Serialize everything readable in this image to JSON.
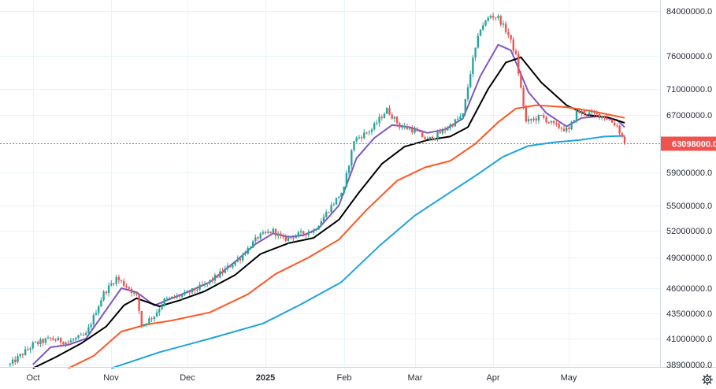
{
  "colors": {
    "background": "#ffffff",
    "grid": "#e9f3f8",
    "axis_line": "#cfd6dc",
    "up_candle": "#26a69a",
    "down_candle": "#ef5350",
    "ma_purple": "#7e57c2",
    "ma_black": "#000000",
    "ma_orange": "#ff5722",
    "ma_blue": "#1fa2e0",
    "last_price": "#ef5350"
  },
  "chart_data": {
    "type": "candlestick",
    "title": "",
    "xlabel": "",
    "ylabel": "",
    "grid": true,
    "ylim": [
      38500000,
      86000000
    ],
    "y_ticks": [
      {
        "value": 84000000,
        "label": "84000000.0"
      },
      {
        "value": 76000000,
        "label": "76000000.0"
      },
      {
        "value": 71000000,
        "label": "71000000.0"
      },
      {
        "value": 67000000,
        "label": "67000000.0"
      },
      {
        "value": 59000000,
        "label": "59000000.0"
      },
      {
        "value": 55000000,
        "label": "55000000.0"
      },
      {
        "value": 52000000,
        "label": "52000000.0"
      },
      {
        "value": 49000000,
        "label": "49000000.0"
      },
      {
        "value": 46000000,
        "label": "46000000.0"
      },
      {
        "value": 43500000,
        "label": "43500000.0"
      },
      {
        "value": 41000000,
        "label": "41000000.0"
      },
      {
        "value": 38900000,
        "label": "38900000.0"
      }
    ],
    "x_ticks": [
      {
        "date": "2024-10-01",
        "label": "Oct",
        "bold": false
      },
      {
        "date": "2024-11-01",
        "label": "Nov",
        "bold": false
      },
      {
        "date": "2024-12-01",
        "label": "Dec",
        "bold": false
      },
      {
        "date": "2025-01-01",
        "label": "2025",
        "bold": true
      },
      {
        "date": "2025-02-01",
        "label": "Feb",
        "bold": false
      },
      {
        "date": "2025-03-01",
        "label": "Mar",
        "bold": false
      },
      {
        "date": "2025-04-01",
        "label": "Apr",
        "bold": false
      },
      {
        "date": "2025-05-01",
        "label": "May",
        "bold": false
      }
    ],
    "x_range": [
      "2024-09-18",
      "2025-06-06"
    ],
    "last_price": {
      "value": 63098000,
      "label": "63098000.0"
    },
    "ohlc_path": [
      [
        "2024-09-22",
        38900000
      ],
      [
        "2024-10-01",
        40500000
      ],
      [
        "2024-10-08",
        41000000
      ],
      [
        "2024-10-15",
        40700000
      ],
      [
        "2024-10-22",
        41400000
      ],
      [
        "2024-10-29",
        45500000
      ],
      [
        "2024-11-03",
        47000000
      ],
      [
        "2024-11-08",
        46000000
      ],
      [
        "2024-11-11",
        45200000
      ],
      [
        "2024-11-13",
        42300000
      ],
      [
        "2024-11-18",
        43300000
      ],
      [
        "2024-11-22",
        44800000
      ],
      [
        "2024-11-30",
        45400000
      ],
      [
        "2024-12-08",
        46300000
      ],
      [
        "2024-12-15",
        47600000
      ],
      [
        "2024-12-22",
        49000000
      ],
      [
        "2024-12-29",
        51300000
      ],
      [
        "2025-01-04",
        52000000
      ],
      [
        "2025-01-08",
        51000000
      ],
      [
        "2025-01-13",
        51500000
      ],
      [
        "2025-01-20",
        52000000
      ],
      [
        "2025-01-26",
        54500000
      ],
      [
        "2025-02-01",
        57000000
      ],
      [
        "2025-02-05",
        63500000
      ],
      [
        "2025-02-12",
        65000000
      ],
      [
        "2025-02-18",
        67800000
      ],
      [
        "2025-02-23",
        65500000
      ],
      [
        "2025-03-01",
        64800000
      ],
      [
        "2025-03-06",
        63500000
      ],
      [
        "2025-03-11",
        64500000
      ],
      [
        "2025-03-16",
        65800000
      ],
      [
        "2025-03-20",
        67000000
      ],
      [
        "2025-03-23",
        73500000
      ],
      [
        "2025-03-27",
        81000000
      ],
      [
        "2025-03-31",
        83200000
      ],
      [
        "2025-04-03",
        82800000
      ],
      [
        "2025-04-07",
        79800000
      ],
      [
        "2025-04-10",
        76000000
      ],
      [
        "2025-04-14",
        66000000
      ],
      [
        "2025-04-20",
        66800000
      ],
      [
        "2025-04-25",
        65600000
      ],
      [
        "2025-05-01",
        64800000
      ],
      [
        "2025-05-04",
        67500000
      ],
      [
        "2025-05-10",
        67200000
      ],
      [
        "2025-05-15",
        66800000
      ],
      [
        "2025-05-20",
        65500000
      ],
      [
        "2025-05-23",
        63098000
      ]
    ],
    "series": [
      {
        "color": "#7e57c2",
        "points": [
          [
            "2024-10-01",
            38900000
          ],
          [
            "2024-10-08",
            40300000
          ],
          [
            "2024-10-15",
            40500000
          ],
          [
            "2024-10-22",
            41000000
          ],
          [
            "2024-10-29",
            43500000
          ],
          [
            "2024-11-05",
            46000000
          ],
          [
            "2024-11-11",
            45600000
          ],
          [
            "2024-11-18",
            44300000
          ],
          [
            "2024-11-25",
            45000000
          ],
          [
            "2024-12-02",
            45700000
          ],
          [
            "2024-12-10",
            46600000
          ],
          [
            "2024-12-20",
            48600000
          ],
          [
            "2024-12-28",
            50500000
          ],
          [
            "2025-01-04",
            51700000
          ],
          [
            "2025-01-10",
            51300000
          ],
          [
            "2025-01-16",
            51500000
          ],
          [
            "2025-01-22",
            52300000
          ],
          [
            "2025-01-30",
            55000000
          ],
          [
            "2025-02-06",
            61000000
          ],
          [
            "2025-02-13",
            63800000
          ],
          [
            "2025-02-20",
            65600000
          ],
          [
            "2025-02-27",
            65300000
          ],
          [
            "2025-03-06",
            64500000
          ],
          [
            "2025-03-13",
            65000000
          ],
          [
            "2025-03-20",
            66500000
          ],
          [
            "2025-03-27",
            73000000
          ],
          [
            "2025-04-03",
            78000000
          ],
          [
            "2025-04-08",
            77000000
          ],
          [
            "2025-04-15",
            70500000
          ],
          [
            "2025-04-22",
            67300000
          ],
          [
            "2025-04-30",
            65400000
          ],
          [
            "2025-05-06",
            66600000
          ],
          [
            "2025-05-13",
            66800000
          ],
          [
            "2025-05-20",
            66300000
          ],
          [
            "2025-05-23",
            65300000
          ]
        ]
      },
      {
        "color": "#000000",
        "points": [
          [
            "2024-10-01",
            38600000
          ],
          [
            "2024-10-10",
            39500000
          ],
          [
            "2024-10-20",
            40600000
          ],
          [
            "2024-10-30",
            42200000
          ],
          [
            "2024-11-06",
            44300000
          ],
          [
            "2024-11-11",
            45000000
          ],
          [
            "2024-11-20",
            44200000
          ],
          [
            "2024-11-28",
            44800000
          ],
          [
            "2024-12-08",
            45700000
          ],
          [
            "2024-12-20",
            47300000
          ],
          [
            "2024-12-30",
            49400000
          ],
          [
            "2025-01-10",
            50600000
          ],
          [
            "2025-01-20",
            51200000
          ],
          [
            "2025-01-30",
            53300000
          ],
          [
            "2025-02-07",
            56600000
          ],
          [
            "2025-02-16",
            60200000
          ],
          [
            "2025-02-25",
            62600000
          ],
          [
            "2025-03-06",
            63500000
          ],
          [
            "2025-03-15",
            64000000
          ],
          [
            "2025-03-22",
            65300000
          ],
          [
            "2025-03-30",
            71000000
          ],
          [
            "2025-04-06",
            75000000
          ],
          [
            "2025-04-12",
            75800000
          ],
          [
            "2025-04-20",
            72000000
          ],
          [
            "2025-04-30",
            68500000
          ],
          [
            "2025-05-08",
            67000000
          ],
          [
            "2025-05-16",
            66700000
          ],
          [
            "2025-05-23",
            65900000
          ]
        ]
      },
      {
        "color": "#ff5722",
        "points": [
          [
            "2024-10-15",
            38600000
          ],
          [
            "2024-10-25",
            39600000
          ],
          [
            "2024-11-05",
            41700000
          ],
          [
            "2024-11-15",
            42400000
          ],
          [
            "2024-11-25",
            42800000
          ],
          [
            "2024-12-10",
            43600000
          ],
          [
            "2024-12-25",
            45400000
          ],
          [
            "2025-01-05",
            47400000
          ],
          [
            "2025-01-18",
            49000000
          ],
          [
            "2025-01-30",
            51000000
          ],
          [
            "2025-02-10",
            54500000
          ],
          [
            "2025-02-22",
            58000000
          ],
          [
            "2025-03-05",
            59700000
          ],
          [
            "2025-03-15",
            60600000
          ],
          [
            "2025-03-25",
            63000000
          ],
          [
            "2025-04-03",
            66000000
          ],
          [
            "2025-04-10",
            68000000
          ],
          [
            "2025-04-18",
            68500000
          ],
          [
            "2025-04-30",
            68200000
          ],
          [
            "2025-05-10",
            67600000
          ],
          [
            "2025-05-23",
            66600000
          ]
        ]
      },
      {
        "color": "#1fa2e0",
        "points": [
          [
            "2024-11-01",
            38600000
          ],
          [
            "2024-11-20",
            39900000
          ],
          [
            "2024-12-10",
            41000000
          ],
          [
            "2024-12-31",
            42500000
          ],
          [
            "2025-01-15",
            44400000
          ],
          [
            "2025-01-31",
            46600000
          ],
          [
            "2025-02-15",
            50300000
          ],
          [
            "2025-03-01",
            53800000
          ],
          [
            "2025-03-15",
            56600000
          ],
          [
            "2025-03-25",
            58600000
          ],
          [
            "2025-04-05",
            61200000
          ],
          [
            "2025-04-15",
            62700000
          ],
          [
            "2025-04-25",
            63200000
          ],
          [
            "2025-05-05",
            63500000
          ],
          [
            "2025-05-15",
            64000000
          ],
          [
            "2025-05-23",
            64100000
          ]
        ]
      }
    ]
  }
}
